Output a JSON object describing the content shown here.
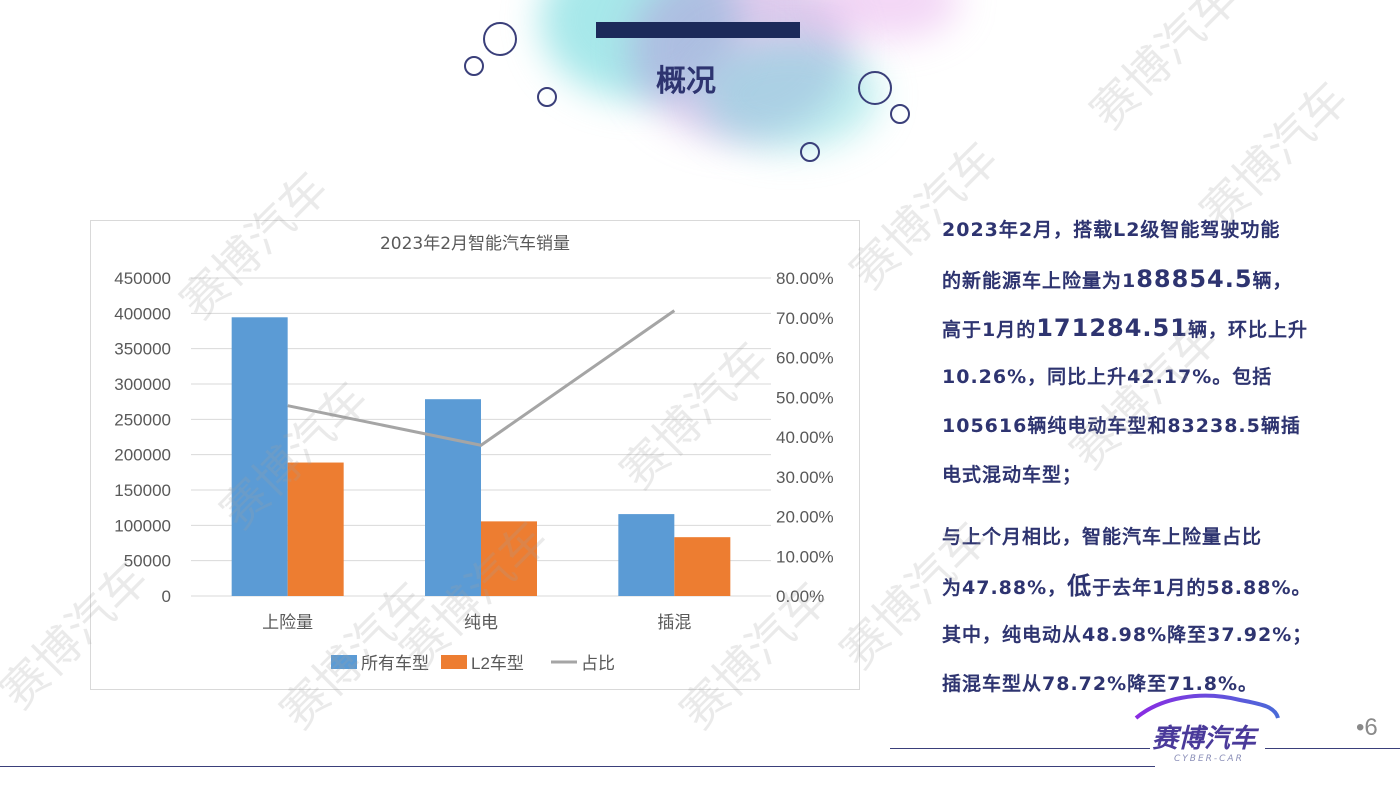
{
  "slide": {
    "title": "概况",
    "page_number": "•6",
    "watermark": "赛博汽车",
    "logo": {
      "name": "赛博汽车",
      "sub": "CYBER-CAR"
    },
    "colors": {
      "text": "#2e3470",
      "title_bar": "#1c2a5a",
      "splash_teal": "#5fd6d8",
      "splash_purple": "#b58bd8"
    }
  },
  "text": {
    "l1": "2023年2月，搭载L2级智能驾驶功能",
    "l2a": "的新能源车上险量为1",
    "l2b": "88854.5",
    "l2c": "辆，",
    "l3a": "高于1月的",
    "l3b": "171284.51",
    "l3c": "辆，环比上升",
    "l4": "10.26%，同比上升42.17%。包括",
    "l5": "105616辆纯电动车型和83238.5辆插",
    "l6": "电式混动车型；",
    "l7": "与上个月相比，智能汽车上险量占比",
    "l8a": "为47.88%，",
    "l8b": "低",
    "l8c": "于去年1月的58.88%。",
    "l9": "其中，纯电动从48.98%降至37.92%；",
    "l10": "插混车型从78.72%降至71.8%。"
  },
  "chart_data": {
    "type": "bar",
    "title": "2023年2月智能汽车销量",
    "categories": [
      "上险量",
      "纯电",
      "插混"
    ],
    "series": [
      {
        "name": "所有车型",
        "type": "bar",
        "axis": "left",
        "color": "#5b9bd5",
        "values": [
          394400,
          278500,
          115900
        ]
      },
      {
        "name": "L2车型",
        "type": "bar",
        "axis": "left",
        "color": "#ed7d31",
        "values": [
          188854.5,
          105616,
          83238.5
        ]
      },
      {
        "name": "占比",
        "type": "line",
        "axis": "right",
        "color": "#a5a5a5",
        "values": [
          47.88,
          37.92,
          71.8
        ]
      }
    ],
    "y_left": {
      "min": 0,
      "max": 450000,
      "ticks": [
        "0",
        "50000",
        "100000",
        "150000",
        "200000",
        "250000",
        "300000",
        "350000",
        "400000",
        "450000"
      ]
    },
    "y_right": {
      "min": 0,
      "max": 80,
      "ticks": [
        "0.00%",
        "10.00%",
        "20.00%",
        "30.00%",
        "40.00%",
        "50.00%",
        "60.00%",
        "70.00%",
        "80.00%"
      ]
    },
    "grid": true,
    "legend": "bottom"
  }
}
